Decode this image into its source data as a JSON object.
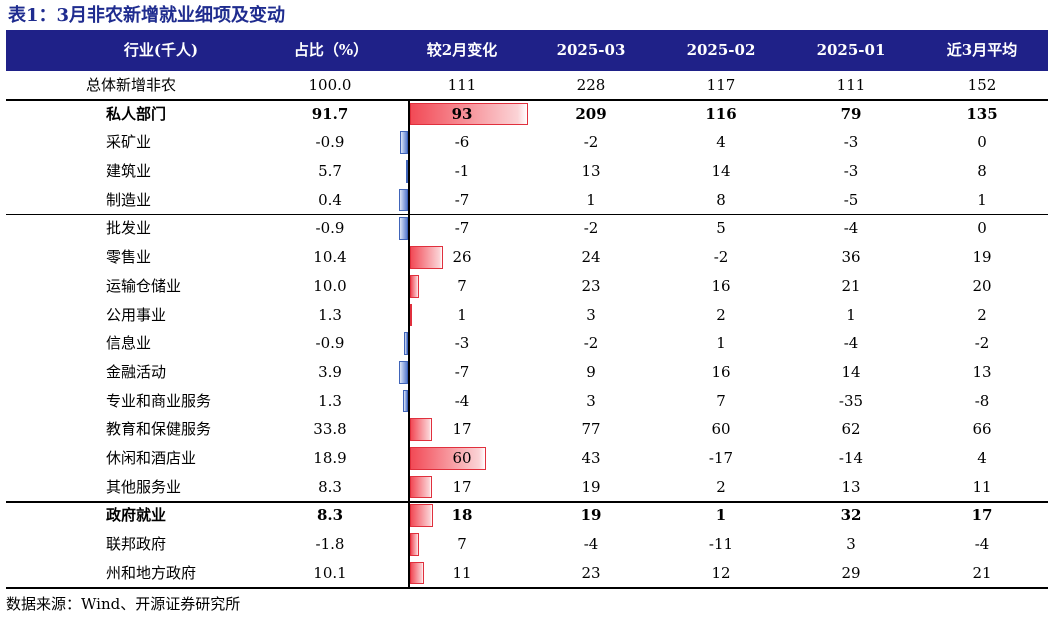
{
  "title": "表1：3月非农新增就业细项及变动",
  "source": "数据来源：Wind、开源证券研究所",
  "colors": {
    "header_bg": "#1f2188",
    "title": "#1f2c8f",
    "pos_bar": "#f24a56",
    "neg_bar": "#5a7ed0"
  },
  "chart_data": {
    "type": "table",
    "title": "表1：3月非农新增就业细项及变动",
    "columns": [
      "行业(千人)",
      "占比（%）",
      "较2月变化",
      "2025-03",
      "2025-02",
      "2025-01",
      "近3月平均"
    ],
    "bar_column": "较2月变化",
    "bar_range": [
      -7,
      93
    ],
    "rows": [
      {
        "name": "总体新增非农",
        "level": 0,
        "bold": false,
        "share": "100.0",
        "change": 111,
        "m03": "228",
        "m02": "117",
        "m01": "111",
        "avg3": "152",
        "bar": false
      },
      {
        "name": "私人部门",
        "level": 1,
        "bold": true,
        "share": "91.7",
        "change": 93,
        "m03": "209",
        "m02": "116",
        "m01": "79",
        "avg3": "135",
        "bar": true
      },
      {
        "name": "采矿业",
        "level": 2,
        "bold": false,
        "share": "-0.9",
        "change": -6,
        "m03": "-2",
        "m02": "4",
        "m01": "-3",
        "avg3": "0",
        "bar": true
      },
      {
        "name": "建筑业",
        "level": 2,
        "bold": false,
        "share": "5.7",
        "change": -1,
        "m03": "13",
        "m02": "14",
        "m01": "-3",
        "avg3": "8",
        "bar": true
      },
      {
        "name": "制造业",
        "level": 2,
        "bold": false,
        "share": "0.4",
        "change": -7,
        "m03": "1",
        "m02": "8",
        "m01": "-5",
        "avg3": "1",
        "bar": true
      },
      {
        "name": "批发业",
        "level": 2,
        "bold": false,
        "share": "-0.9",
        "change": -7,
        "m03": "-2",
        "m02": "5",
        "m01": "-4",
        "avg3": "0",
        "bar": true
      },
      {
        "name": "零售业",
        "level": 2,
        "bold": false,
        "share": "10.4",
        "change": 26,
        "m03": "24",
        "m02": "-2",
        "m01": "36",
        "avg3": "19",
        "bar": true
      },
      {
        "name": "运输仓储业",
        "level": 2,
        "bold": false,
        "share": "10.0",
        "change": 7,
        "m03": "23",
        "m02": "16",
        "m01": "21",
        "avg3": "20",
        "bar": true
      },
      {
        "name": "公用事业",
        "level": 2,
        "bold": false,
        "share": "1.3",
        "change": 1,
        "m03": "3",
        "m02": "2",
        "m01": "1",
        "avg3": "2",
        "bar": true
      },
      {
        "name": "信息业",
        "level": 2,
        "bold": false,
        "share": "-0.9",
        "change": -3,
        "m03": "-2",
        "m02": "1",
        "m01": "-4",
        "avg3": "-2",
        "bar": true
      },
      {
        "name": "金融活动",
        "level": 2,
        "bold": false,
        "share": "3.9",
        "change": -7,
        "m03": "9",
        "m02": "16",
        "m01": "14",
        "avg3": "13",
        "bar": true
      },
      {
        "name": "专业和商业服务",
        "level": 2,
        "bold": false,
        "share": "1.3",
        "change": -4,
        "m03": "3",
        "m02": "7",
        "m01": "-35",
        "avg3": "-8",
        "bar": true
      },
      {
        "name": "教育和保健服务",
        "level": 2,
        "bold": false,
        "share": "33.8",
        "change": 17,
        "m03": "77",
        "m02": "60",
        "m01": "62",
        "avg3": "66",
        "bar": true
      },
      {
        "name": "休闲和酒店业",
        "level": 2,
        "bold": false,
        "share": "18.9",
        "change": 60,
        "m03": "43",
        "m02": "-17",
        "m01": "-14",
        "avg3": "4",
        "bar": true
      },
      {
        "name": "其他服务业",
        "level": 2,
        "bold": false,
        "share": "8.3",
        "change": 17,
        "m03": "19",
        "m02": "2",
        "m01": "13",
        "avg3": "11",
        "bar": true
      },
      {
        "name": "政府就业",
        "level": 1,
        "bold": true,
        "share": "8.3",
        "change": 18,
        "m03": "19",
        "m02": "1",
        "m01": "32",
        "avg3": "17",
        "bar": true
      },
      {
        "name": "联邦政府",
        "level": 2,
        "bold": false,
        "share": "-1.8",
        "change": 7,
        "m03": "-4",
        "m02": "-11",
        "m01": "3",
        "avg3": "-4",
        "bar": true
      },
      {
        "name": "州和地方政府",
        "level": 2,
        "bold": false,
        "share": "10.1",
        "change": 11,
        "m03": "23",
        "m02": "12",
        "m01": "29",
        "avg3": "21",
        "bar": true
      }
    ]
  }
}
